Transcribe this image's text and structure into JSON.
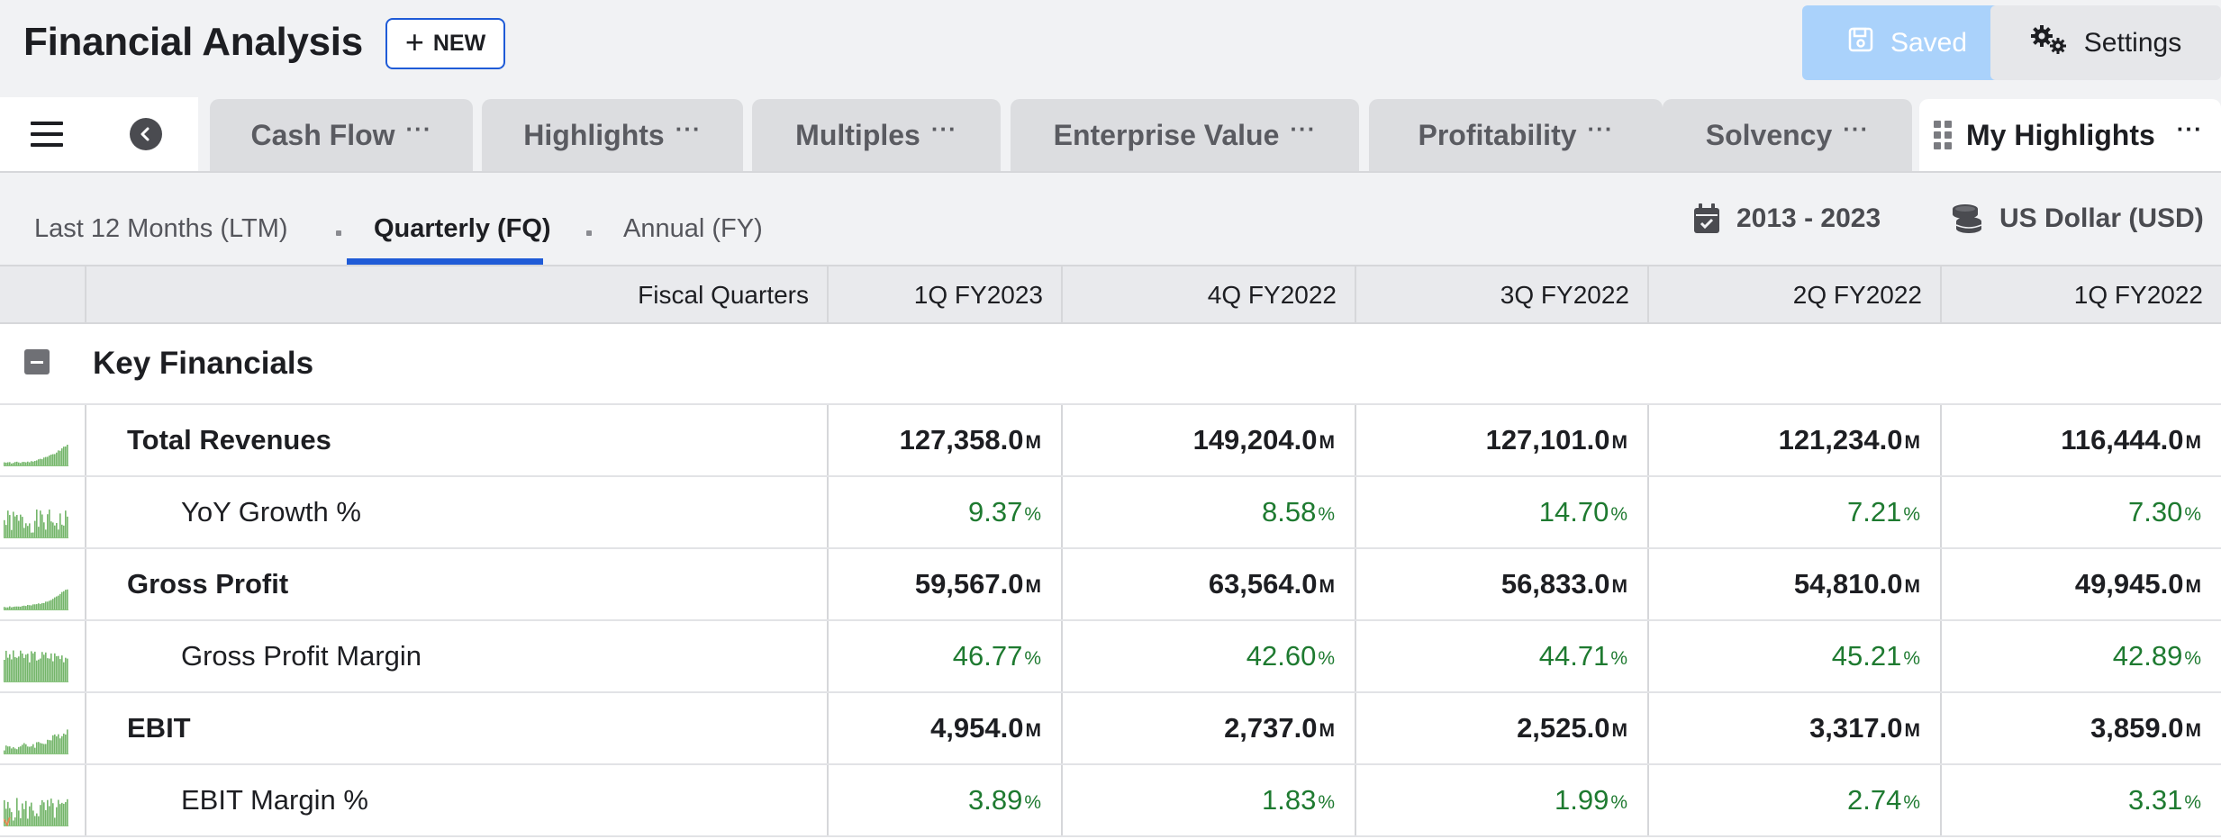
{
  "header": {
    "title": "Financial Analysis",
    "new_label": "NEW",
    "saved_label": "Saved",
    "settings_label": "Settings"
  },
  "tabs": [
    {
      "label": "Cash Flow",
      "active": false
    },
    {
      "label": "Highlights",
      "active": false
    },
    {
      "label": "Multiples",
      "active": false
    },
    {
      "label": "Enterprise Value",
      "active": false
    },
    {
      "label": "Profitability",
      "active": false
    },
    {
      "label": "Solvency",
      "active": false
    },
    {
      "label": "My Highlights",
      "active": true
    }
  ],
  "tab_more_glyph": "···",
  "periods": [
    {
      "label": "Last 12 Months (LTM)",
      "active": false
    },
    {
      "label": "Quarterly (FQ)",
      "active": true
    },
    {
      "label": "Annual (FY)",
      "active": false
    }
  ],
  "range_label": "2013 - 2023",
  "currency_label": "US Dollar (USD)",
  "table": {
    "label_header": "Fiscal Quarters",
    "columns": [
      "1Q FY2023",
      "4Q FY2022",
      "3Q FY2022",
      "2Q FY2022",
      "1Q FY2022"
    ],
    "section_title": "Key Financials",
    "rows": [
      {
        "label": "Total Revenues",
        "kind": "num",
        "values": [
          "127,358.0",
          "149,204.0",
          "127,101.0",
          "121,234.0",
          "116,444.0"
        ],
        "unit": "M"
      },
      {
        "label": "YoY Growth %",
        "kind": "pct",
        "values": [
          "9.37",
          "8.58",
          "14.70",
          "7.21",
          "7.30"
        ],
        "unit": "%"
      },
      {
        "label": "Gross Profit",
        "kind": "num",
        "values": [
          "59,567.0",
          "63,564.0",
          "56,833.0",
          "54,810.0",
          "49,945.0"
        ],
        "unit": "M"
      },
      {
        "label": "Gross Profit Margin",
        "kind": "pct",
        "values": [
          "46.77",
          "42.60",
          "44.71",
          "45.21",
          "42.89"
        ],
        "unit": "%"
      },
      {
        "label": "EBIT",
        "kind": "num",
        "values": [
          "4,954.0",
          "2,737.0",
          "2,525.0",
          "3,317.0",
          "3,859.0"
        ],
        "unit": "M"
      },
      {
        "label": "EBIT Margin %",
        "kind": "pct",
        "values": [
          "3.89",
          "1.83",
          "1.99",
          "2.74",
          "3.31"
        ],
        "unit": "%"
      }
    ]
  },
  "colors": {
    "accent": "#1f5bd7",
    "saved_bg": "#aad2fb",
    "positive": "#1e7a30",
    "spark": "#5aa84f"
  },
  "icons": [
    "menu-icon",
    "chevron-left-icon",
    "save-icon",
    "gears-icon",
    "calendar-icon",
    "coins-icon",
    "drag-grip-icon",
    "collapse-icon"
  ]
}
